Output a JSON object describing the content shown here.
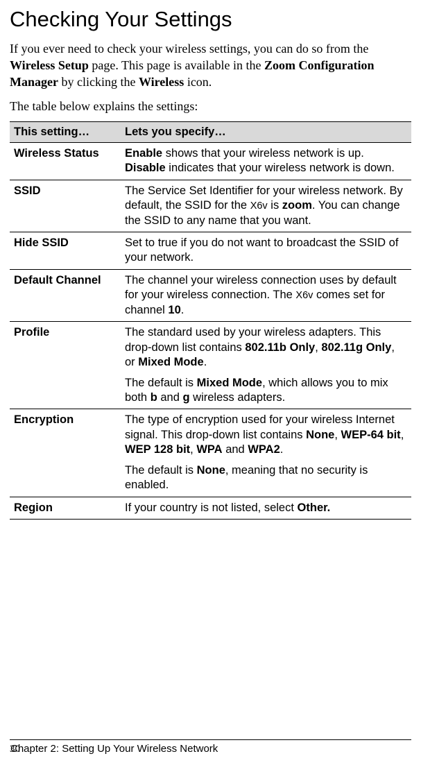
{
  "title": "Checking Your Settings",
  "intro": {
    "line1a": "If you ever need to check your wireless settings, you can do so from the ",
    "bold1": "Wireless Setup",
    "line1b": " page. This page is available in the ",
    "bold2": "Zoom Configuration Manager",
    "line1c": " by clicking the ",
    "bold3": "Wireless",
    "line1d": " icon."
  },
  "table_intro": "The table below explains the settings:",
  "table": {
    "header1": "This setting…",
    "header2": "Lets you specify…",
    "rows": [
      {
        "setting": "Wireless Status",
        "desc_parts": [
          {
            "b": "Enable"
          },
          {
            "t": " shows that your wireless network is up. "
          },
          {
            "b": "Disable"
          },
          {
            "t": " indicates that your wireless network is down."
          }
        ]
      },
      {
        "setting": "SSID",
        "desc_parts": [
          {
            "t": "The Service Set Identifier for your wireless network. By default, the SSID for the "
          },
          {
            "s": "X6v"
          },
          {
            "t": " is "
          },
          {
            "b": "zoom"
          },
          {
            "t": ". You can change the SSID to any name that you want."
          }
        ]
      },
      {
        "setting": "Hide SSID",
        "desc_parts": [
          {
            "t": "Set to true if you do not want to broadcast the SSID of your network."
          }
        ]
      },
      {
        "setting": "Default Channel",
        "desc_parts": [
          {
            "t": "The channel your wireless connection uses by default for your wireless connection. The "
          },
          {
            "s": "X6v"
          },
          {
            "t": " comes set for channel "
          },
          {
            "b": "10"
          },
          {
            "t": "."
          }
        ]
      },
      {
        "setting": "Profile",
        "desc_parts": [
          {
            "t": "The standard used by your wireless adapters. This drop-down list contains "
          },
          {
            "b": "802.11b Only"
          },
          {
            "t": ", "
          },
          {
            "b": "802.11g Only"
          },
          {
            "t": ", or "
          },
          {
            "b": "Mixed Mode"
          },
          {
            "t": "."
          }
        ],
        "desc_parts2": [
          {
            "t": "The default is "
          },
          {
            "b": "Mixed Mode"
          },
          {
            "t": ", which allows you to mix both "
          },
          {
            "b": "b"
          },
          {
            "t": " and "
          },
          {
            "b": "g"
          },
          {
            "t": " wireless adapters."
          }
        ]
      },
      {
        "setting": "Encryption",
        "desc_parts": [
          {
            "t": "The type of encryption used for your wireless Internet signal. This drop-down list contains "
          },
          {
            "b": "None"
          },
          {
            "t": ", "
          },
          {
            "b": "WEP-64 bit"
          },
          {
            "t": ", "
          },
          {
            "b": "WEP 128 bit"
          },
          {
            "t": ", "
          },
          {
            "b": "WPA"
          },
          {
            "t": " and "
          },
          {
            "b": "WPA2"
          },
          {
            "t": "."
          }
        ],
        "desc_parts2": [
          {
            "t": "The default is "
          },
          {
            "b": "None"
          },
          {
            "t": ", meaning that no security is enabled."
          }
        ]
      },
      {
        "setting": "Region",
        "desc_parts": [
          {
            "t": "If your country is not listed, select "
          },
          {
            "b": "Other."
          }
        ]
      }
    ]
  },
  "footer": {
    "page_number": "30",
    "chapter": "Chapter 2: Setting Up Your Wireless Network"
  }
}
